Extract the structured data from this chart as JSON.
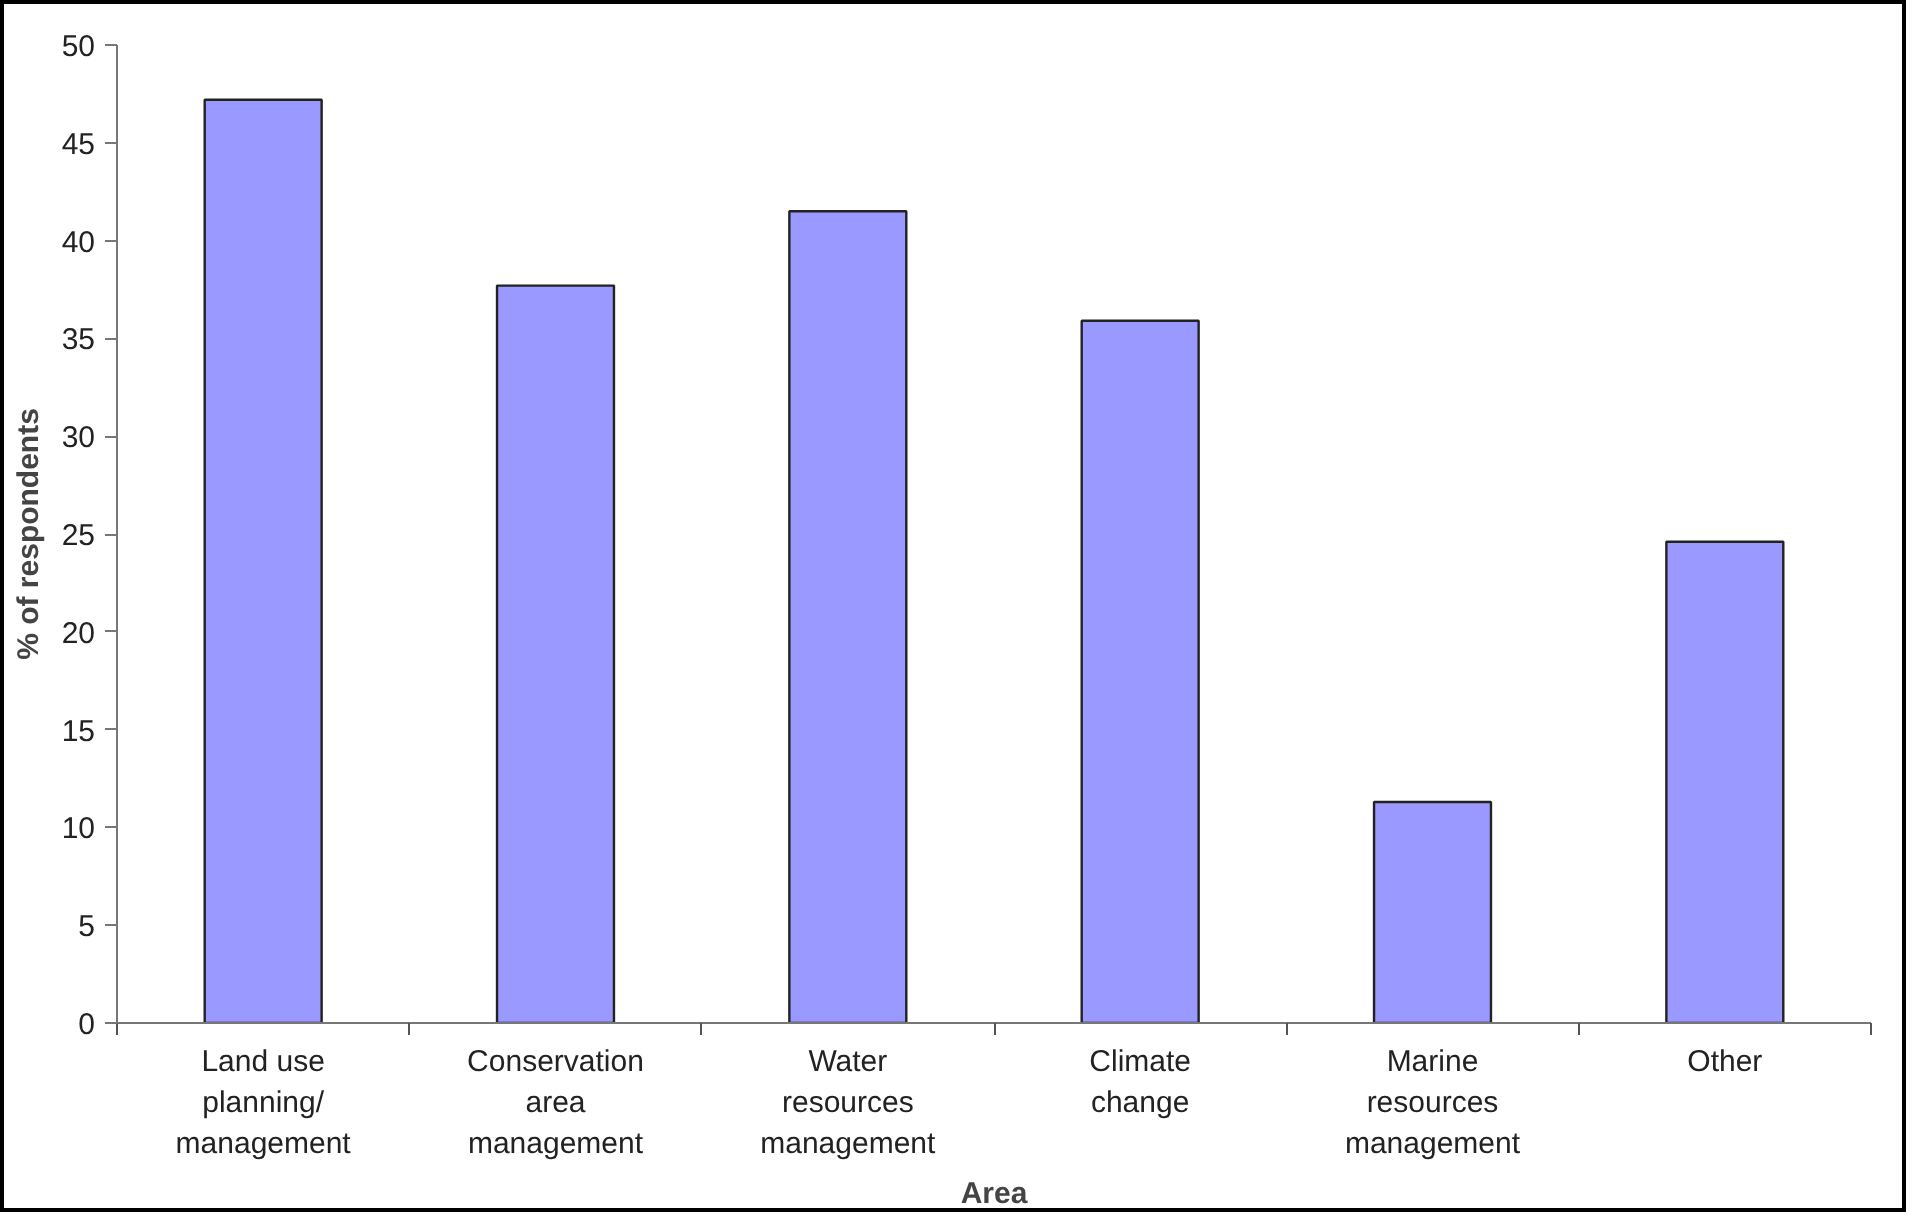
{
  "chart_data": {
    "type": "bar",
    "xlabel": "Area",
    "ylabel": "% of respondents",
    "categories": [
      "Land use planning/management",
      "Conservation area management",
      "Water resources management",
      "Climate change",
      "Marine resources management",
      "Other"
    ],
    "values": [
      47.2,
      37.7,
      41.5,
      35.9,
      11.3,
      24.6
    ],
    "color": "#9999ff",
    "ylim": [
      0,
      50
    ],
    "yticks": [
      0,
      5,
      10,
      15,
      20,
      25,
      30,
      35,
      40,
      45,
      50
    ],
    "grid": false
  }
}
